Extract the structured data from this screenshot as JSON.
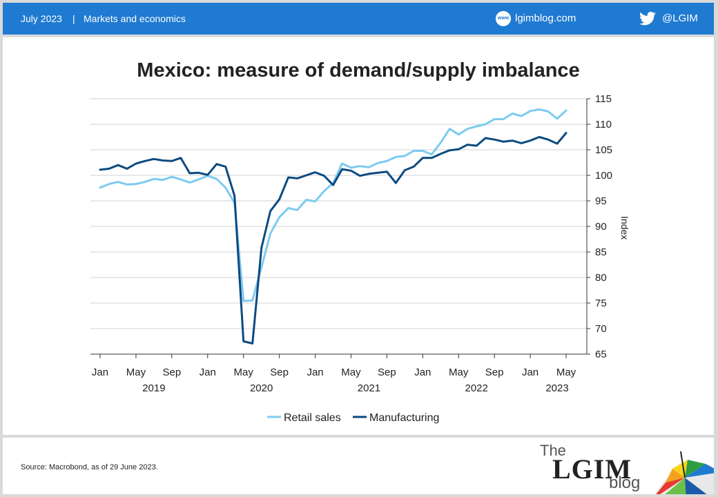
{
  "header": {
    "date": "July 2023",
    "separator": "|",
    "category": "Markets and economics",
    "www_badge": "www",
    "blog_url": "lgimblog.com",
    "twitter_handle": "@LGIM"
  },
  "footer": {
    "source": "Source: Macrobond, as of 29 June 2023.",
    "logo_the": "The",
    "logo_main": "LGIM",
    "logo_blog": "blog"
  },
  "colors": {
    "banner": "#1f7ad1",
    "retail": "#7ccbf0",
    "manufacturing": "#0b4a80"
  },
  "chart_data": {
    "type": "line",
    "title": "Mexico: measure of demand/supply imbalance",
    "ylabel": "Index",
    "ylim": [
      65,
      115
    ],
    "yticks": [
      65,
      70,
      75,
      80,
      85,
      90,
      95,
      100,
      105,
      110,
      115
    ],
    "x_ticks": [
      {
        "idx": 0,
        "label": "Jan"
      },
      {
        "idx": 4,
        "label": "May"
      },
      {
        "idx": 8,
        "label": "Sep"
      },
      {
        "idx": 12,
        "label": "Jan"
      },
      {
        "idx": 16,
        "label": "May"
      },
      {
        "idx": 20,
        "label": "Sep"
      },
      {
        "idx": 24,
        "label": "Jan"
      },
      {
        "idx": 28,
        "label": "May"
      },
      {
        "idx": 32,
        "label": "Sep"
      },
      {
        "idx": 36,
        "label": "Jan"
      },
      {
        "idx": 40,
        "label": "May"
      },
      {
        "idx": 44,
        "label": "Sep"
      },
      {
        "idx": 48,
        "label": "Jan"
      },
      {
        "idx": 52,
        "label": "May"
      }
    ],
    "years": [
      {
        "idx": 6,
        "label": "2019"
      },
      {
        "idx": 18,
        "label": "2020"
      },
      {
        "idx": 30,
        "label": "2021"
      },
      {
        "idx": 42,
        "label": "2022"
      },
      {
        "idx": 51,
        "label": "2023"
      }
    ],
    "x_months": [
      "2019-01",
      "2019-02",
      "2019-03",
      "2019-04",
      "2019-05",
      "2019-06",
      "2019-07",
      "2019-08",
      "2019-09",
      "2019-10",
      "2019-11",
      "2019-12",
      "2020-01",
      "2020-02",
      "2020-03",
      "2020-04",
      "2020-05",
      "2020-06",
      "2020-07",
      "2020-08",
      "2020-09",
      "2020-10",
      "2020-11",
      "2020-12",
      "2021-01",
      "2021-02",
      "2021-03",
      "2021-04",
      "2021-05",
      "2021-06",
      "2021-07",
      "2021-08",
      "2021-09",
      "2021-10",
      "2021-11",
      "2021-12",
      "2022-01",
      "2022-02",
      "2022-03",
      "2022-04",
      "2022-05",
      "2022-06",
      "2022-07",
      "2022-08",
      "2022-09",
      "2022-10",
      "2022-11",
      "2022-12",
      "2023-01",
      "2023-02",
      "2023-03",
      "2023-04",
      "2023-05"
    ],
    "series": [
      {
        "name": "Retail sales",
        "color": "#7ccbf0",
        "values": [
          97.6,
          98.3,
          98.7,
          98.2,
          98.3,
          98.7,
          99.3,
          99.1,
          99.7,
          99.2,
          98.6,
          99.2,
          99.9,
          99.3,
          97.6,
          94.6,
          75.4,
          75.5,
          82.0,
          88.6,
          91.8,
          93.6,
          93.2,
          95.2,
          94.9,
          96.9,
          98.5,
          102.3,
          101.5,
          101.8,
          101.6,
          102.4,
          102.8,
          103.6,
          103.8,
          104.8,
          104.8,
          104.1,
          106.4,
          109.1,
          108.0,
          109.1,
          109.6,
          110.0,
          111.0,
          111.0,
          112.1,
          111.6,
          112.6,
          112.9,
          112.5,
          111.1,
          112.7
        ]
      },
      {
        "name": "Manufacturing",
        "color": "#0b4a80",
        "values": [
          101.1,
          101.3,
          102.0,
          101.3,
          102.3,
          102.8,
          103.2,
          102.9,
          102.8,
          103.4,
          100.4,
          100.5,
          100.1,
          102.2,
          101.7,
          96.0,
          67.5,
          67.1,
          85.8,
          93.0,
          95.3,
          99.6,
          99.4,
          100.0,
          100.6,
          99.9,
          98.1,
          101.2,
          100.9,
          99.9,
          100.3,
          100.5,
          100.7,
          98.5,
          101.0,
          101.7,
          103.4,
          103.4,
          104.2,
          104.9,
          105.1,
          106.0,
          105.8,
          107.3,
          107.0,
          106.6,
          106.8,
          106.3,
          106.8,
          107.5,
          107.0,
          106.2,
          108.3
        ]
      }
    ],
    "legend": [
      "Retail sales",
      "Manufacturing"
    ],
    "legend_position": "bottom-center"
  }
}
